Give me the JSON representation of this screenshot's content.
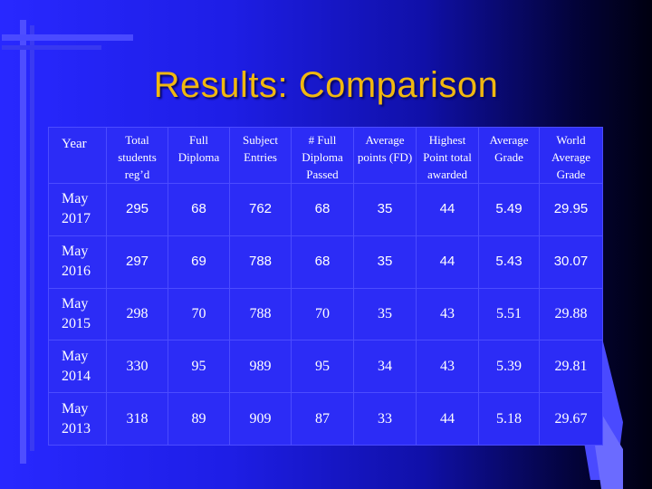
{
  "slide": {
    "title": "Results: Comparison"
  },
  "table": {
    "headers": [
      "Year",
      "Total students reg’d",
      "Full Diploma",
      "Subject Entries",
      "# Full Diploma Passed",
      "Average points (FD)",
      "Highest Point total awarded",
      "Average Grade",
      "World Average Grade"
    ],
    "rows": [
      [
        "May 2017",
        "295",
        "68",
        "762",
        "68",
        "35",
        "44",
        "5.49",
        "29.95"
      ],
      [
        "May 2016",
        "297",
        "69",
        "788",
        "68",
        "35",
        "44",
        "5.43",
        "30.07"
      ],
      [
        "May 2015",
        "298",
        "70",
        "788",
        "70",
        "35",
        "43",
        "5.51",
        "29.88"
      ],
      [
        "May 2014",
        "330",
        "95",
        "989",
        "95",
        "34",
        "43",
        "5.39",
        "29.81"
      ],
      [
        "May 2013",
        "318",
        "89",
        "909",
        "87",
        "33",
        "44",
        "5.18",
        "29.67"
      ]
    ]
  },
  "colors": {
    "background_start": "#2828ff",
    "background_end": "#000010",
    "title": "#f0b810",
    "table_fill": "#2c2cf6"
  }
}
